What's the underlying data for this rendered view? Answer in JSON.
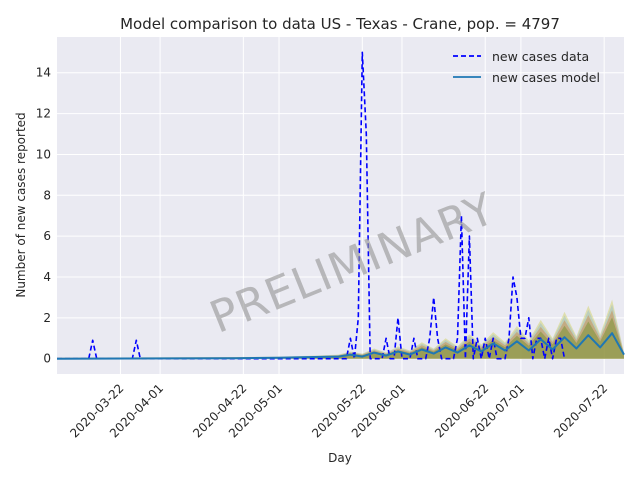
{
  "chart_data": {
    "type": "line",
    "title": "Model comparison to data US - Texas - Crane, pop. = 4797",
    "xlabel": "Day",
    "ylabel": "Number of new cases reported",
    "watermark": "PRELIMINARY",
    "x_range": [
      "2020-03-06",
      "2020-07-27"
    ],
    "ylim": [
      -0.75,
      15.75
    ],
    "y_ticks": [
      0,
      2,
      4,
      6,
      8,
      10,
      12,
      14
    ],
    "x_ticks": [
      "2020-03-22",
      "2020-04-01",
      "2020-04-22",
      "2020-05-01",
      "2020-05-22",
      "2020-06-01",
      "2020-06-22",
      "2020-07-01",
      "2020-07-22"
    ],
    "grid": true,
    "legend_position": "top-right",
    "colors": {
      "background": "#eaeaf2",
      "data_line": "#0000ff",
      "model_line": "#1f77b4",
      "band_green": "#6b8e23",
      "band_orange": "#d2691e",
      "band_blue": "#7fb3d5",
      "band_yellow": "#c8c832"
    },
    "series": [
      {
        "name": "new cases data",
        "style": "dashed",
        "points": [
          [
            "2020-03-06",
            0
          ],
          [
            "2020-03-14",
            0
          ],
          [
            "2020-03-15",
            0.9
          ],
          [
            "2020-03-16",
            0
          ],
          [
            "2020-03-25",
            0
          ],
          [
            "2020-03-26",
            0.9
          ],
          [
            "2020-03-27",
            0
          ],
          [
            "2020-05-18",
            0
          ],
          [
            "2020-05-19",
            1
          ],
          [
            "2020-05-20",
            0
          ],
          [
            "2020-05-21",
            2
          ],
          [
            "2020-05-22",
            15
          ],
          [
            "2020-05-23",
            11
          ],
          [
            "2020-05-24",
            0
          ],
          [
            "2020-05-27",
            0
          ],
          [
            "2020-05-28",
            1
          ],
          [
            "2020-05-29",
            0
          ],
          [
            "2020-05-30",
            0
          ],
          [
            "2020-05-31",
            2
          ],
          [
            "2020-06-01",
            0
          ],
          [
            "2020-06-03",
            0
          ],
          [
            "2020-06-04",
            1
          ],
          [
            "2020-06-05",
            0
          ],
          [
            "2020-06-07",
            0
          ],
          [
            "2020-06-08",
            1
          ],
          [
            "2020-06-09",
            3
          ],
          [
            "2020-06-10",
            1
          ],
          [
            "2020-06-11",
            0
          ],
          [
            "2020-06-14",
            0
          ],
          [
            "2020-06-15",
            1
          ],
          [
            "2020-06-16",
            7
          ],
          [
            "2020-06-17",
            0
          ],
          [
            "2020-06-18",
            6
          ],
          [
            "2020-06-19",
            0
          ],
          [
            "2020-06-20",
            1
          ],
          [
            "2020-06-21",
            0
          ],
          [
            "2020-06-22",
            1
          ],
          [
            "2020-06-23",
            0
          ],
          [
            "2020-06-24",
            1
          ],
          [
            "2020-06-25",
            0
          ],
          [
            "2020-06-27",
            0
          ],
          [
            "2020-06-28",
            1
          ],
          [
            "2020-06-29",
            4
          ],
          [
            "2020-06-30",
            3
          ],
          [
            "2020-07-01",
            1
          ],
          [
            "2020-07-02",
            1
          ],
          [
            "2020-07-03",
            2
          ],
          [
            "2020-07-04",
            0
          ],
          [
            "2020-07-05",
            1
          ],
          [
            "2020-07-06",
            1
          ],
          [
            "2020-07-07",
            0
          ],
          [
            "2020-07-08",
            1
          ],
          [
            "2020-07-09",
            0
          ],
          [
            "2020-07-10",
            1
          ],
          [
            "2020-07-11",
            1
          ],
          [
            "2020-07-12",
            0
          ]
        ]
      },
      {
        "name": "new cases model",
        "style": "solid",
        "points": [
          [
            "2020-03-06",
            0
          ],
          [
            "2020-04-20",
            0.02
          ],
          [
            "2020-05-01",
            0.05
          ],
          [
            "2020-05-10",
            0.08
          ],
          [
            "2020-05-16",
            0.1
          ],
          [
            "2020-05-19",
            0.2
          ],
          [
            "2020-05-22",
            0.1
          ],
          [
            "2020-05-25",
            0.3
          ],
          [
            "2020-05-28",
            0.15
          ],
          [
            "2020-05-31",
            0.35
          ],
          [
            "2020-06-03",
            0.2
          ],
          [
            "2020-06-06",
            0.45
          ],
          [
            "2020-06-09",
            0.25
          ],
          [
            "2020-06-12",
            0.55
          ],
          [
            "2020-06-15",
            0.3
          ],
          [
            "2020-06-18",
            0.65
          ],
          [
            "2020-06-21",
            0.35
          ],
          [
            "2020-06-24",
            0.75
          ],
          [
            "2020-06-27",
            0.4
          ],
          [
            "2020-06-30",
            0.85
          ],
          [
            "2020-07-03",
            0.4
          ],
          [
            "2020-07-06",
            0.95
          ],
          [
            "2020-07-09",
            0.45
          ],
          [
            "2020-07-12",
            1.05
          ],
          [
            "2020-07-15",
            0.5
          ],
          [
            "2020-07-18",
            1.15
          ],
          [
            "2020-07-21",
            0.55
          ],
          [
            "2020-07-24",
            1.25
          ],
          [
            "2020-07-27",
            0.2
          ]
        ]
      }
    ],
    "model_band_upper": [
      [
        "2020-03-06",
        0.05
      ],
      [
        "2020-04-20",
        0.08
      ],
      [
        "2020-05-01",
        0.1
      ],
      [
        "2020-05-10",
        0.15
      ],
      [
        "2020-05-16",
        0.2
      ],
      [
        "2020-05-19",
        0.35
      ],
      [
        "2020-05-22",
        0.25
      ],
      [
        "2020-05-25",
        0.5
      ],
      [
        "2020-05-28",
        0.3
      ],
      [
        "2020-05-31",
        0.6
      ],
      [
        "2020-06-03",
        0.4
      ],
      [
        "2020-06-06",
        0.8
      ],
      [
        "2020-06-09",
        0.5
      ],
      [
        "2020-06-12",
        1.0
      ],
      [
        "2020-06-15",
        0.6
      ],
      [
        "2020-06-18",
        1.2
      ],
      [
        "2020-06-21",
        0.7
      ],
      [
        "2020-06-24",
        1.3
      ],
      [
        "2020-06-27",
        0.8
      ],
      [
        "2020-06-30",
        1.6
      ],
      [
        "2020-07-03",
        0.9
      ],
      [
        "2020-07-06",
        1.9
      ],
      [
        "2020-07-09",
        1.0
      ],
      [
        "2020-07-12",
        2.3
      ],
      [
        "2020-07-15",
        1.1
      ],
      [
        "2020-07-18",
        2.6
      ],
      [
        "2020-07-21",
        1.2
      ],
      [
        "2020-07-24",
        2.9
      ],
      [
        "2020-07-27",
        0.3
      ]
    ],
    "legend": [
      "new cases data",
      "new cases model"
    ]
  }
}
